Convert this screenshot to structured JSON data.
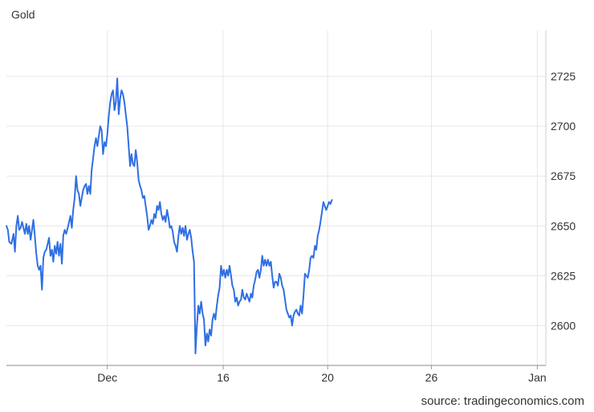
{
  "chart_data": {
    "type": "line",
    "title": "Gold",
    "source": "source: tradingeconomics.com",
    "xlabel": "",
    "ylabel": "",
    "grid": true,
    "legend": "none",
    "line_color": "#2f6fe4",
    "ylim": [
      2580,
      2748
    ],
    "x_ticks": [
      {
        "label": "Dec",
        "x": 20.2
      },
      {
        "label": "16",
        "x": 36.5
      },
      {
        "label": "20",
        "x": 51.2
      },
      {
        "label": "26",
        "x": 65.8
      },
      {
        "label": "Jan",
        "x": 80.7
      }
    ],
    "y_ticks": [
      2600,
      2625,
      2650,
      2675,
      2700,
      2725
    ],
    "xlim": [
      6.0,
      81.9
    ],
    "series": [
      {
        "values": [
          [
            6.0,
            2650
          ],
          [
            6.2,
            2648
          ],
          [
            6.4,
            2642
          ],
          [
            6.7,
            2641
          ],
          [
            7.0,
            2646
          ],
          [
            7.2,
            2637
          ],
          [
            7.4,
            2650
          ],
          [
            7.6,
            2655
          ],
          [
            7.8,
            2648
          ],
          [
            8.0,
            2649
          ],
          [
            8.2,
            2652
          ],
          [
            8.4,
            2649
          ],
          [
            8.6,
            2646
          ],
          [
            8.8,
            2651
          ],
          [
            9.0,
            2646
          ],
          [
            9.2,
            2650
          ],
          [
            9.4,
            2643
          ],
          [
            9.6,
            2648
          ],
          [
            9.8,
            2653
          ],
          [
            10.0,
            2645
          ],
          [
            10.2,
            2636
          ],
          [
            10.4,
            2630
          ],
          [
            10.6,
            2628
          ],
          [
            10.8,
            2630
          ],
          [
            11.0,
            2618
          ],
          [
            11.2,
            2634
          ],
          [
            11.4,
            2637
          ],
          [
            11.6,
            2638
          ],
          [
            11.8,
            2641
          ],
          [
            12.0,
            2644
          ],
          [
            12.2,
            2635
          ],
          [
            12.4,
            2638
          ],
          [
            12.6,
            2632
          ],
          [
            12.8,
            2640
          ],
          [
            13.0,
            2636
          ],
          [
            13.2,
            2642
          ],
          [
            13.4,
            2635
          ],
          [
            13.6,
            2641
          ],
          [
            13.8,
            2631
          ],
          [
            14.0,
            2645
          ],
          [
            14.2,
            2648
          ],
          [
            14.4,
            2646
          ],
          [
            14.7,
            2650
          ],
          [
            15.0,
            2655
          ],
          [
            15.2,
            2649
          ],
          [
            15.4,
            2658
          ],
          [
            15.6,
            2664
          ],
          [
            15.8,
            2675
          ],
          [
            16.0,
            2668
          ],
          [
            16.2,
            2666
          ],
          [
            16.4,
            2660
          ],
          [
            16.6,
            2664
          ],
          [
            16.8,
            2668
          ],
          [
            17.0,
            2670
          ],
          [
            17.2,
            2671
          ],
          [
            17.4,
            2666
          ],
          [
            17.6,
            2670
          ],
          [
            17.8,
            2666
          ],
          [
            18.0,
            2678
          ],
          [
            18.2,
            2684
          ],
          [
            18.4,
            2690
          ],
          [
            18.6,
            2694
          ],
          [
            18.8,
            2690
          ],
          [
            19.0,
            2695
          ],
          [
            19.2,
            2700
          ],
          [
            19.4,
            2698
          ],
          [
            19.6,
            2686
          ],
          [
            19.8,
            2692
          ],
          [
            20.0,
            2690
          ],
          [
            20.2,
            2696
          ],
          [
            20.4,
            2705
          ],
          [
            20.6,
            2712
          ],
          [
            20.8,
            2716
          ],
          [
            21.0,
            2718
          ],
          [
            21.2,
            2708
          ],
          [
            21.4,
            2712
          ],
          [
            21.6,
            2724
          ],
          [
            21.8,
            2706
          ],
          [
            22.0,
            2714
          ],
          [
            22.2,
            2718
          ],
          [
            22.4,
            2716
          ],
          [
            22.6,
            2712
          ],
          [
            22.8,
            2706
          ],
          [
            23.0,
            2700
          ],
          [
            23.2,
            2690
          ],
          [
            23.4,
            2680
          ],
          [
            23.6,
            2686
          ],
          [
            23.8,
            2681
          ],
          [
            24.0,
            2680
          ],
          [
            24.2,
            2688
          ],
          [
            24.4,
            2682
          ],
          [
            24.6,
            2673
          ],
          [
            24.8,
            2670
          ],
          [
            25.0,
            2668
          ],
          [
            25.2,
            2664
          ],
          [
            25.4,
            2665
          ],
          [
            25.6,
            2660
          ],
          [
            25.8,
            2655
          ],
          [
            26.0,
            2648
          ],
          [
            26.2,
            2650
          ],
          [
            26.4,
            2653
          ],
          [
            26.6,
            2651
          ],
          [
            26.8,
            2656
          ],
          [
            27.0,
            2654
          ],
          [
            27.2,
            2660
          ],
          [
            27.4,
            2658
          ],
          [
            27.6,
            2662
          ],
          [
            27.8,
            2656
          ],
          [
            28.0,
            2653
          ],
          [
            28.2,
            2655
          ],
          [
            28.4,
            2652
          ],
          [
            28.6,
            2658
          ],
          [
            28.8,
            2654
          ],
          [
            29.0,
            2649
          ],
          [
            29.2,
            2650
          ],
          [
            29.4,
            2647
          ],
          [
            29.6,
            2642
          ],
          [
            29.8,
            2640
          ],
          [
            30.0,
            2637
          ],
          [
            30.2,
            2645
          ],
          [
            30.4,
            2650
          ],
          [
            30.6,
            2646
          ],
          [
            30.8,
            2649
          ],
          [
            31.0,
            2645
          ],
          [
            31.2,
            2650
          ],
          [
            31.4,
            2643
          ],
          [
            31.6,
            2646
          ],
          [
            31.8,
            2648
          ],
          [
            32.0,
            2644
          ],
          [
            32.2,
            2637
          ],
          [
            32.4,
            2632
          ],
          [
            32.6,
            2586
          ],
          [
            32.8,
            2600
          ],
          [
            33.0,
            2610
          ],
          [
            33.2,
            2606
          ],
          [
            33.4,
            2612
          ],
          [
            33.6,
            2606
          ],
          [
            33.8,
            2603
          ],
          [
            34.0,
            2590
          ],
          [
            34.2,
            2596
          ],
          [
            34.4,
            2592
          ],
          [
            34.6,
            2598
          ],
          [
            34.8,
            2595
          ],
          [
            35.0,
            2603
          ],
          [
            35.2,
            2606
          ],
          [
            35.4,
            2603
          ],
          [
            35.6,
            2610
          ],
          [
            35.8,
            2615
          ],
          [
            36.0,
            2619
          ],
          [
            36.2,
            2630
          ],
          [
            36.4,
            2625
          ],
          [
            36.6,
            2628
          ],
          [
            36.8,
            2624
          ],
          [
            37.0,
            2628
          ],
          [
            37.2,
            2625
          ],
          [
            37.4,
            2630
          ],
          [
            37.6,
            2625
          ],
          [
            37.8,
            2620
          ],
          [
            38.0,
            2618
          ],
          [
            38.2,
            2612
          ],
          [
            38.4,
            2614
          ],
          [
            38.6,
            2610
          ],
          [
            38.8,
            2612
          ],
          [
            39.0,
            2613
          ],
          [
            39.2,
            2618
          ],
          [
            39.4,
            2614
          ],
          [
            39.6,
            2613
          ],
          [
            39.8,
            2616
          ],
          [
            40.0,
            2614
          ],
          [
            40.2,
            2612
          ],
          [
            40.4,
            2616
          ],
          [
            40.6,
            2614
          ],
          [
            40.8,
            2620
          ],
          [
            41.0,
            2623
          ],
          [
            41.2,
            2627
          ],
          [
            41.4,
            2628
          ],
          [
            41.6,
            2624
          ],
          [
            41.8,
            2628
          ],
          [
            42.0,
            2635
          ],
          [
            42.2,
            2630
          ],
          [
            42.4,
            2633
          ],
          [
            42.6,
            2630
          ],
          [
            42.8,
            2633
          ],
          [
            43.0,
            2630
          ],
          [
            43.2,
            2632
          ],
          [
            43.4,
            2625
          ],
          [
            43.6,
            2619
          ],
          [
            43.8,
            2622
          ],
          [
            44.0,
            2622
          ],
          [
            44.2,
            2620
          ],
          [
            44.4,
            2626
          ],
          [
            44.6,
            2624
          ],
          [
            44.8,
            2620
          ],
          [
            45.0,
            2618
          ],
          [
            45.2,
            2613
          ],
          [
            45.4,
            2608
          ],
          [
            45.6,
            2606
          ],
          [
            45.8,
            2604
          ],
          [
            46.0,
            2605
          ],
          [
            46.2,
            2600
          ],
          [
            46.4,
            2605
          ],
          [
            46.6,
            2607
          ],
          [
            46.8,
            2608
          ],
          [
            47.0,
            2606
          ],
          [
            47.2,
            2605
          ],
          [
            47.4,
            2610
          ],
          [
            47.6,
            2606
          ],
          [
            47.8,
            2615
          ],
          [
            48.0,
            2626
          ],
          [
            48.2,
            2625
          ],
          [
            48.4,
            2624
          ],
          [
            48.6,
            2628
          ],
          [
            48.8,
            2634
          ],
          [
            49.0,
            2635
          ],
          [
            49.2,
            2634
          ],
          [
            49.4,
            2640
          ],
          [
            49.6,
            2638
          ],
          [
            49.8,
            2645
          ],
          [
            50.0,
            2648
          ],
          [
            50.2,
            2652
          ],
          [
            50.4,
            2657
          ],
          [
            50.6,
            2662
          ],
          [
            50.8,
            2660
          ],
          [
            51.0,
            2658
          ],
          [
            51.2,
            2660
          ],
          [
            51.4,
            2662
          ],
          [
            51.6,
            2661
          ],
          [
            51.8,
            2663
          ]
        ]
      }
    ]
  }
}
